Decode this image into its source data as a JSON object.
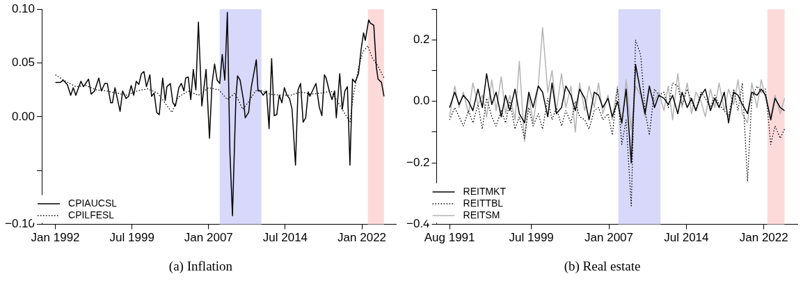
{
  "chart_data": [
    {
      "type": "line",
      "title": "(a) Inflation",
      "legend": "bottom left",
      "xlim": [
        "1990-09",
        "2025-05"
      ],
      "xticks": [
        {
          "value": "1992-01",
          "label": "Jan 1992"
        },
        {
          "value": "1999-07",
          "label": "Jul 1999"
        },
        {
          "value": "2007-01",
          "label": "Jan 2007"
        },
        {
          "value": "2014-07",
          "label": "Jul 2014"
        },
        {
          "value": "2022-01",
          "label": "Jan 2022"
        }
      ],
      "ylim": [
        -0.1,
        0.1
      ],
      "yticks": [
        {
          "value": -0.1,
          "label": "−0.10"
        },
        {
          "value": -0.05,
          "label": null
        },
        {
          "value": 0,
          "label": "0.00"
        },
        {
          "value": 0.05,
          "label": "0.05"
        },
        {
          "value": 0.1,
          "label": "0.10"
        }
      ],
      "bands": [
        {
          "axis": "x",
          "from": "2008-02",
          "to": "2012-03",
          "color": "#d8d8fa"
        },
        {
          "axis": "x",
          "from": "2022-08",
          "to": "2024-03",
          "color": "#fddada"
        }
      ],
      "series": [
        {
          "name": "CPIAUCSL",
          "color": "#000000",
          "line_style": "solid",
          "x": [
            "1992-01",
            "1992-07",
            "1992-10",
            "1993-03",
            "1993-07",
            "1993-10",
            "1994-01",
            "1994-07",
            "1994-10",
            "1995-04",
            "1995-07",
            "1995-11",
            "1996-04",
            "1996-07",
            "1996-11",
            "1997-02",
            "1997-06",
            "1997-08",
            "1997-11",
            "1998-05",
            "1998-08",
            "1998-12",
            "1999-03",
            "1999-06",
            "1999-09",
            "1999-12",
            "2000-03",
            "2000-06",
            "2000-09",
            "2000-12",
            "2001-04",
            "2001-06",
            "2001-09",
            "2001-12",
            "2002-03",
            "2002-07",
            "2002-10",
            "2002-12",
            "2003-04",
            "2003-07",
            "2003-10",
            "2004-02",
            "2004-05",
            "2004-08",
            "2004-10",
            "2005-01",
            "2005-04",
            "2005-07",
            "2005-10",
            "2006-01",
            "2006-05",
            "2006-10",
            "2007-02",
            "2007-05",
            "2007-08",
            "2007-11",
            "2008-02",
            "2008-05",
            "2008-08",
            "2008-11",
            "2009-02",
            "2009-05",
            "2009-09",
            "2009-11",
            "2010-02",
            "2010-06",
            "2010-08",
            "2010-12",
            "2011-03",
            "2011-09",
            "2011-11",
            "2012-02",
            "2012-05",
            "2012-09",
            "2012-12",
            "2013-03",
            "2013-06",
            "2013-09",
            "2013-12",
            "2014-03",
            "2014-06",
            "2014-09",
            "2014-12",
            "2015-03",
            "2015-07",
            "2015-10",
            "2016-01",
            "2016-04",
            "2016-07",
            "2016-10",
            "2016-12",
            "2017-07",
            "2017-11",
            "2018-02",
            "2018-05",
            "2018-07",
            "2018-11",
            "2019-02",
            "2019-05",
            "2019-07",
            "2019-11",
            "2020-02",
            "2020-05",
            "2020-08",
            "2020-11",
            "2021-02",
            "2021-05",
            "2021-09",
            "2021-12",
            "2022-03",
            "2022-05",
            "2022-09",
            "2022-11",
            "2023-03",
            "2023-06",
            "2023-08",
            "2023-12",
            "2024-03"
          ],
          "values": [
            0.032,
            0.032,
            0.034,
            0.03,
            0.02,
            0.027,
            0.02,
            0.033,
            0.028,
            0.035,
            0.021,
            0.024,
            0.036,
            0.024,
            0.031,
            0.031,
            0.013,
            0.013,
            0.027,
            0.005,
            0.024,
            0.017,
            0.019,
            0.029,
            0.02,
            0.033,
            0.03,
            0.04,
            0.042,
            0.028,
            0.039,
            0.019,
            0.022,
            0.004,
            0.002,
            0.036,
            0.015,
            0.028,
            0.031,
            0.013,
            0.01,
            0.027,
            0.031,
            0.024,
            0.036,
            0.037,
            0.016,
            0.044,
            0.025,
            0.088,
            0.01,
            0.044,
            -0.02,
            0.031,
            0.049,
            0.034,
            0.031,
            0.058,
            0.034,
            0.097,
            -0.033,
            -0.092,
            0.017,
            0.038,
            0.034,
            0.015,
            -0.001,
            0.004,
            0.027,
            0.053,
            0.024,
            0.024,
            0.02,
            0.024,
            -0.011,
            0.054,
            0.001,
            0.002,
            0.02,
            0.013,
            0.027,
            0.02,
            0.017,
            0.007,
            -0.045,
            0.025,
            0.031,
            -0.005,
            -0.001,
            0.023,
            0.019,
            0.031,
            0.009,
            0.001,
            0.039,
            0.036,
            0.023,
            0.016,
            0.024,
            -0.001,
            0.04,
            0.007,
            0.024,
            0.028,
            -0.045,
            0.035,
            0.032,
            0.04,
            0.062,
            0.078,
            0.071,
            0.09,
            0.087,
            0.085,
            0.046,
            0.035,
            0.032,
            0.019
          ]
        },
        {
          "name": "CPILFESL",
          "color": "#000000",
          "line_style": "dotted",
          "x": [
            "1992-01",
            "1993-01",
            "1994-01",
            "1995-01",
            "1996-01",
            "1997-01",
            "1998-01",
            "1999-01",
            "2000-01",
            "2001-01",
            "2002-01",
            "2003-06",
            "2004-01",
            "2005-01",
            "2006-01",
            "2007-01",
            "2008-01",
            "2008-11",
            "2009-08",
            "2010-05",
            "2011-01",
            "2011-08",
            "2012-01",
            "2013-01",
            "2014-01",
            "2015-01",
            "2016-01",
            "2017-01",
            "2018-01",
            "2019-01",
            "2020-11",
            "2021-03",
            "2021-09",
            "2022-02",
            "2022-08",
            "2023-01",
            "2023-08",
            "2024-03"
          ],
          "values": [
            0.039,
            0.033,
            0.028,
            0.029,
            0.025,
            0.024,
            0.022,
            0.02,
            0.024,
            0.026,
            0.022,
            0.004,
            0.018,
            0.024,
            0.02,
            0.027,
            0.025,
            0.016,
            0.022,
            0.007,
            0.015,
            0.024,
            0.025,
            0.021,
            0.02,
            0.02,
            0.023,
            0.021,
            0.022,
            0.024,
            -0.005,
            0.02,
            0.045,
            0.06,
            0.066,
            0.055,
            0.047,
            0.036
          ]
        }
      ]
    },
    {
      "type": "line",
      "title": "(b) Real estate",
      "legend": "bottom left",
      "xlim": [
        "1990-05",
        "2025-04"
      ],
      "xticks": [
        {
          "value": "1991-08",
          "label": "Aug 1991"
        },
        {
          "value": "1999-07",
          "label": "Jul 1999"
        },
        {
          "value": "2007-01",
          "label": "Jan 2007"
        },
        {
          "value": "2014-07",
          "label": "Jul 2014"
        },
        {
          "value": "2022-01",
          "label": "Jan 2022"
        }
      ],
      "ylim": [
        -0.4,
        0.3
      ],
      "yticks": [
        {
          "value": -0.4,
          "label": "−0.4"
        },
        {
          "value": -0.3,
          "label": null
        },
        {
          "value": -0.2,
          "label": "−0.2"
        },
        {
          "value": -0.1,
          "label": null
        },
        {
          "value": 0,
          "label": "0.0"
        },
        {
          "value": 0.1,
          "label": null
        },
        0.2,
        {
          "value": 0.3,
          "label": null
        }
      ],
      "bands": [
        {
          "axis": "x",
          "from": "2007-12",
          "to": "2012-01",
          "color": "#d8d8fa"
        },
        {
          "axis": "x",
          "from": "2022-05",
          "to": "2024-01",
          "color": "#fddada"
        }
      ],
      "x": [
        "1991-08",
        "1992-02",
        "1992-07",
        "1992-12",
        "1993-06",
        "1993-11",
        "1994-05",
        "1994-10",
        "1995-03",
        "1995-09",
        "1996-02",
        "1996-08",
        "1997-01",
        "1997-06",
        "1997-12",
        "1998-05",
        "1998-11",
        "1999-04",
        "1999-09",
        "2000-03",
        "2000-08",
        "2001-02",
        "2001-07",
        "2001-12",
        "2002-06",
        "2002-11",
        "2003-05",
        "2003-10",
        "2004-03",
        "2004-09",
        "2005-02",
        "2005-08",
        "2006-01",
        "2006-06",
        "2006-12",
        "2007-05",
        "2007-11",
        "2008-04",
        "2008-09",
        "2009-03",
        "2009-08",
        "2010-02",
        "2010-07",
        "2010-12",
        "2011-06",
        "2011-11",
        "2012-05",
        "2012-10",
        "2013-03",
        "2013-09",
        "2014-02",
        "2014-08",
        "2015-01",
        "2015-06",
        "2015-12",
        "2016-05",
        "2016-11",
        "2017-04",
        "2017-09",
        "2018-03",
        "2018-08",
        "2019-02",
        "2019-07",
        "2019-12",
        "2020-06",
        "2020-11",
        "2021-05",
        "2021-10",
        "2022-03",
        "2022-09",
        "2023-02",
        "2023-08",
        "2024-01"
      ],
      "series": [
        {
          "name": "REITMKT",
          "color": "#000000",
          "line_style": "solid",
          "values": [
            -0.02,
            0.03,
            -0.01,
            0.02,
            0.0,
            -0.03,
            0.04,
            -0.02,
            0.09,
            -0.01,
            0.03,
            -0.05,
            0.02,
            -0.03,
            0.04,
            -0.04,
            -0.07,
            0.03,
            -0.02,
            0.05,
            0.03,
            -0.05,
            0.06,
            -0.04,
            -0.02,
            0.05,
            0.02,
            -0.03,
            0.04,
            0.01,
            -0.06,
            0.03,
            0.02,
            -0.02,
            0.01,
            -0.05,
            0.0,
            -0.07,
            0.04,
            -0.2,
            0.12,
            0.03,
            -0.04,
            0.05,
            -0.02,
            0.02,
            0.01,
            -0.01,
            0.02,
            -0.04,
            0.03,
            -0.02,
            0.01,
            -0.03,
            0.02,
            0.04,
            -0.03,
            0.01,
            -0.02,
            0.03,
            -0.07,
            0.03,
            0.02,
            -0.01,
            -0.04,
            0.03,
            0.02,
            0.04,
            0.02,
            -0.06,
            0.01,
            -0.02,
            -0.03
          ]
        },
        {
          "name": "REITTBL",
          "color": "#000000",
          "line_style": "dotted",
          "values": [
            -0.06,
            -0.02,
            -0.05,
            -0.08,
            -0.03,
            -0.07,
            -0.01,
            -0.09,
            0.01,
            -0.05,
            -0.08,
            -0.03,
            -0.07,
            0.0,
            -0.09,
            -0.05,
            -0.12,
            -0.02,
            -0.08,
            -0.04,
            -0.09,
            0.01,
            -0.06,
            -0.02,
            -0.08,
            -0.03,
            -0.07,
            0.0,
            -0.05,
            -0.06,
            -0.09,
            -0.03,
            -0.02,
            -0.06,
            -0.04,
            -0.11,
            0.04,
            -0.14,
            -0.06,
            -0.34,
            0.2,
            0.15,
            -0.03,
            -0.11,
            0.04,
            0.02,
            0.03,
            -0.02,
            0.06,
            0.05,
            -0.01,
            0.04,
            0.0,
            -0.03,
            0.03,
            0.01,
            -0.02,
            0.02,
            -0.01,
            -0.03,
            -0.05,
            0.04,
            -0.03,
            0.06,
            -0.26,
            0.01,
            0.05,
            0.03,
            0.04,
            -0.14,
            -0.08,
            -0.12,
            -0.09
          ]
        },
        {
          "name": "REITSM",
          "color": "#b3b3b3",
          "line_style": "solid",
          "values": [
            -0.05,
            0.05,
            -0.02,
            0.03,
            -0.04,
            0.06,
            -0.01,
            0.02,
            -0.05,
            0.07,
            -0.03,
            0.08,
            -0.04,
            0.02,
            -0.06,
            0.13,
            -0.13,
            0.02,
            -0.07,
            0.05,
            0.24,
            0.03,
            0.1,
            -0.03,
            0.09,
            -0.02,
            0.05,
            -0.1,
            0.06,
            -0.03,
            0.05,
            -0.02,
            0.06,
            -0.04,
            0.02,
            -0.06,
            0.05,
            -0.08,
            0.07,
            -0.09,
            0.05,
            0.02,
            -0.05,
            0.04,
            0.0,
            0.03,
            -0.03,
            0.05,
            -0.06,
            0.09,
            -0.02,
            0.06,
            -0.04,
            0.03,
            0.0,
            -0.05,
            0.04,
            -0.02,
            0.06,
            -0.03,
            0.04,
            -0.01,
            0.07,
            -0.04,
            -0.07,
            0.06,
            -0.02,
            0.07,
            0.01,
            -0.05,
            0.02,
            -0.04,
            0.01
          ]
        }
      ]
    }
  ]
}
